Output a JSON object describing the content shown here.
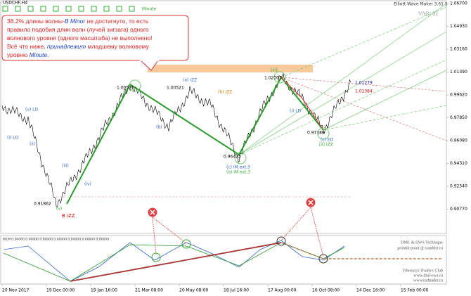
{
  "header": {
    "symbol": "USDCHF,H4",
    "toolbar": [
      "Minute"
    ],
    "ewm": "Elliott Wave Maker 3.61.5",
    "var": "VAR: 02"
  },
  "annotation": {
    "lines": [
      [
        "38.2% длины волны-",
        "B Minor",
        " не достигнуто, то есть"
      ],
      [
        "правило подобия длин волн (лучей зигзага) одного"
      ],
      [
        "волнового уровня (одного масштаба) не выполнено!"
      ],
      [
        "Всё что ниже, ",
        "принадлежит",
        " младшему волновому"
      ],
      [
        "уровню ",
        "Minute",
        "."
      ]
    ]
  },
  "price_axis": {
    "labels": [
      "1.06700",
      "1.04930",
      "1.03160",
      "1.01390",
      "0.99620",
      "0.97850",
      "0.96080",
      "0.94310",
      "0.92540",
      "0.90770"
    ]
  },
  "time_axis": {
    "labels": [
      "20 Nov 2017",
      "19 Dec 00:00",
      "19 Jan 16:00",
      "21 Mar 08:00",
      "20 May 08:00",
      "18 Jul 16:00",
      "17 Aug 00:00",
      "16 Oct 08:00",
      "14 Dec 16:00",
      "15 Feb 00:00"
    ]
  },
  "price_tags": [
    "1.00571",
    "1.00521",
    "1.01279",
    "0.96425",
    "0.97186",
    "0.91862",
    "1.02303",
    "1.01384"
  ],
  "wave_labels": [
    "(i) LD",
    "(ii)",
    "(iii)",
    "(iv)",
    "(v)",
    "(a) iZZ",
    "(b)",
    "(c) iM.ext.3",
    "B iZZ",
    "(v) LD",
    "[iii]",
    "(i) LD",
    "(a) iM.ext.3",
    "(b) iZZ",
    "(c) ED",
    "[ii] iZZ"
  ],
  "indicator": {
    "title": "WLM 0.00000 0.00000 0.00000 0.00000 0.00000 0.00000 0.00000"
  },
  "watermark": [
    "DML & EWA Technique",
    "pointik-point @ rambler.ru",
    "Fibonacci Traders Club",
    "www.dml-ewa.ru",
    "www.radtrader.ru"
  ]
}
